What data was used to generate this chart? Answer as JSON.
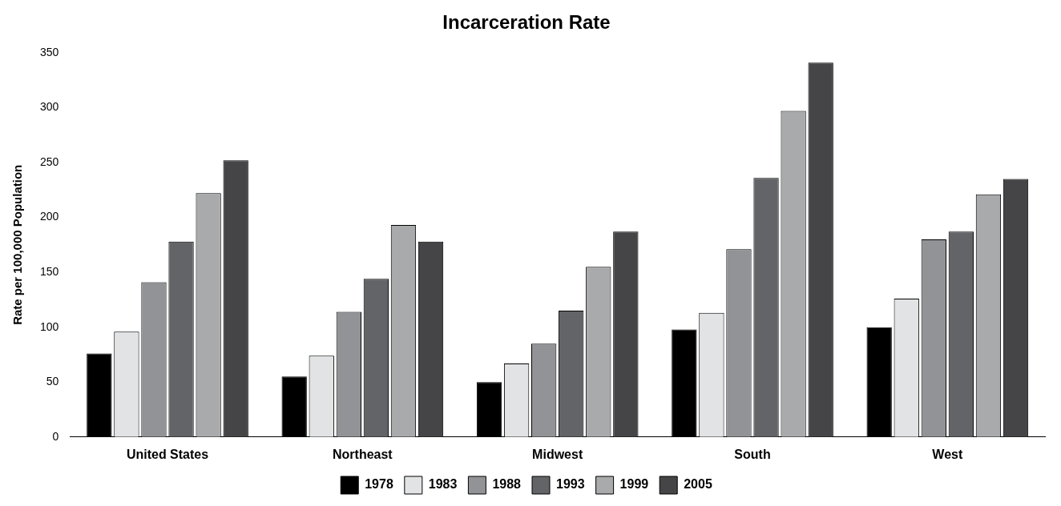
{
  "chart_data": {
    "type": "bar",
    "title": "Incarceration Rate",
    "ylabel": "Rate per 100,000 Population",
    "categories": [
      "United States",
      "Northeast",
      "Midwest",
      "South",
      "West"
    ],
    "series": [
      {
        "name": "1978",
        "color": "#000000",
        "values": [
          76,
          55,
          50,
          98,
          100
        ]
      },
      {
        "name": "1983",
        "color": "#e2e3e5",
        "values": [
          96,
          74,
          67,
          113,
          126
        ]
      },
      {
        "name": "1988",
        "color": "#929396",
        "values": [
          141,
          114,
          85,
          171,
          180
        ]
      },
      {
        "name": "1993",
        "color": "#636468",
        "values": [
          178,
          144,
          115,
          236,
          187
        ]
      },
      {
        "name": "1999",
        "color": "#a9aaac",
        "values": [
          222,
          193,
          155,
          297,
          221
        ]
      },
      {
        "name": "2005",
        "color": "#454547",
        "values": [
          252,
          178,
          187,
          341,
          235
        ]
      }
    ],
    "ylim": [
      0,
      350
    ],
    "yticks": [
      0,
      50,
      100,
      150,
      200,
      250,
      300,
      350
    ],
    "grid": false,
    "legend": "bottom"
  }
}
